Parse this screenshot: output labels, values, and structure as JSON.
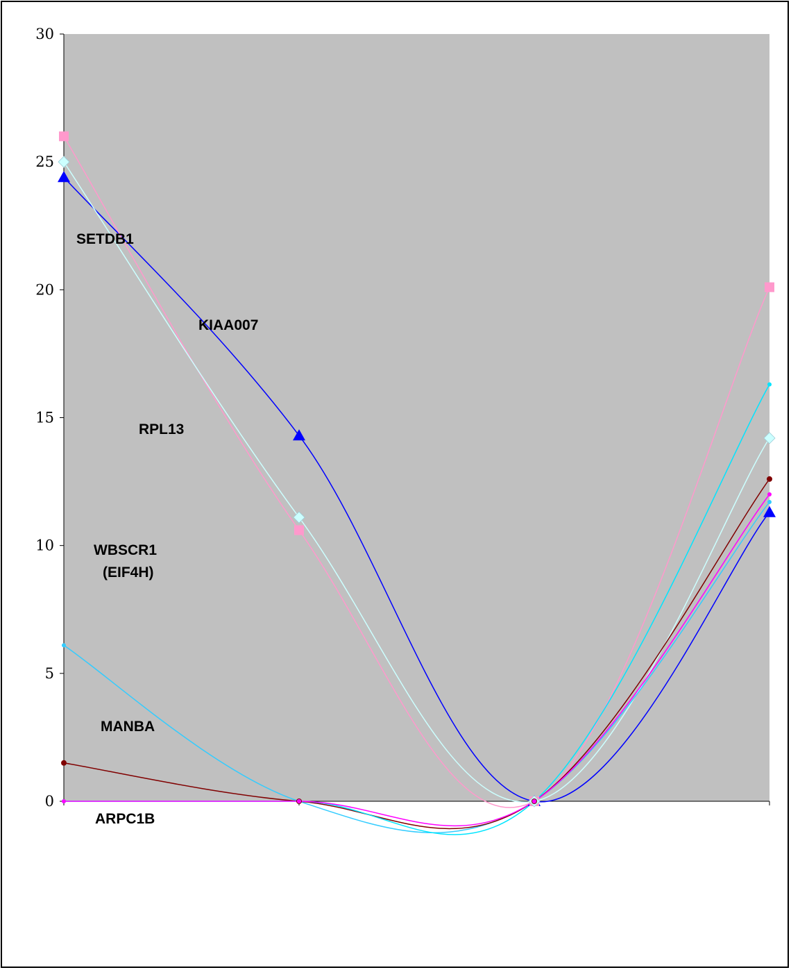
{
  "chart_data": {
    "type": "line",
    "title": "",
    "xlabel": "",
    "ylabel": "",
    "ylim": [
      0,
      30
    ],
    "yticks": [
      "0",
      "5",
      "10",
      "15",
      "20",
      "25",
      "30"
    ],
    "x_points": 4,
    "grid": false,
    "plot_background": "#c0c0c0",
    "series": [
      {
        "name": "KIAA007",
        "color": "#0000ff",
        "marker": "triangle",
        "values": [
          24.4,
          14.3,
          0,
          11.3
        ]
      },
      {
        "name": "RPL13",
        "color": "#ff99cc",
        "marker": "square",
        "values": [
          26.0,
          10.6,
          0,
          20.1
        ]
      },
      {
        "name": "SETDB1",
        "color": "#ccffff",
        "marker": "diamond",
        "values": [
          25.0,
          11.1,
          0,
          14.2
        ]
      },
      {
        "name": "WBSCR1\n(EIF4H)",
        "color": "#33ccff",
        "marker": "small",
        "values": [
          6.1,
          0,
          0,
          11.7
        ]
      },
      {
        "name": "MANBA",
        "color": "#800000",
        "marker": "circle",
        "values": [
          1.5,
          0,
          0,
          12.6
        ]
      },
      {
        "name": "ARPC1B",
        "color": "#00e5ff",
        "marker": "small",
        "values": [
          0,
          0,
          0,
          16.3
        ]
      },
      {
        "name": "",
        "color": "#ff00ff",
        "marker": "small",
        "values": [
          0,
          0,
          0,
          12.0
        ]
      }
    ],
    "labels": {
      "setdb1": "SETDB1",
      "kiaa007": "KIAA007",
      "rpl13": "RPL13",
      "wbscr1_line1": "WBSCR1",
      "wbscr1_line2": "(EIF4H)",
      "manba": "MANBA",
      "arpc1b": "ARPC1B"
    }
  }
}
